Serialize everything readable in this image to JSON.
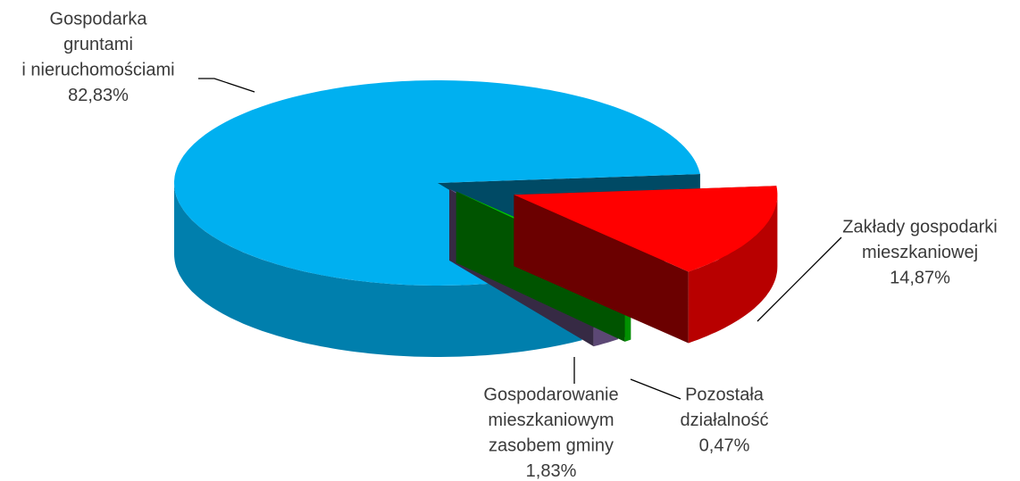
{
  "chart_data": {
    "type": "pie3d",
    "categories": [
      [
        "Zakłady gospodarki",
        "mieszkaniowej"
      ],
      [
        "Pozostała",
        "działalność"
      ],
      [
        "Gospodarowanie",
        "mieszkaniowym",
        "zasobem gminy"
      ],
      [
        "Gospodarka",
        "gruntami",
        "i nieruchomościami"
      ]
    ],
    "values": [
      14.87,
      0.47,
      1.83,
      82.83
    ],
    "value_labels": [
      "14,87%",
      "0,47%",
      "1,83%",
      "82,83%"
    ],
    "colors": [
      "#ff0000",
      "#00c800",
      "#8064a2",
      "#00b0f0"
    ]
  }
}
